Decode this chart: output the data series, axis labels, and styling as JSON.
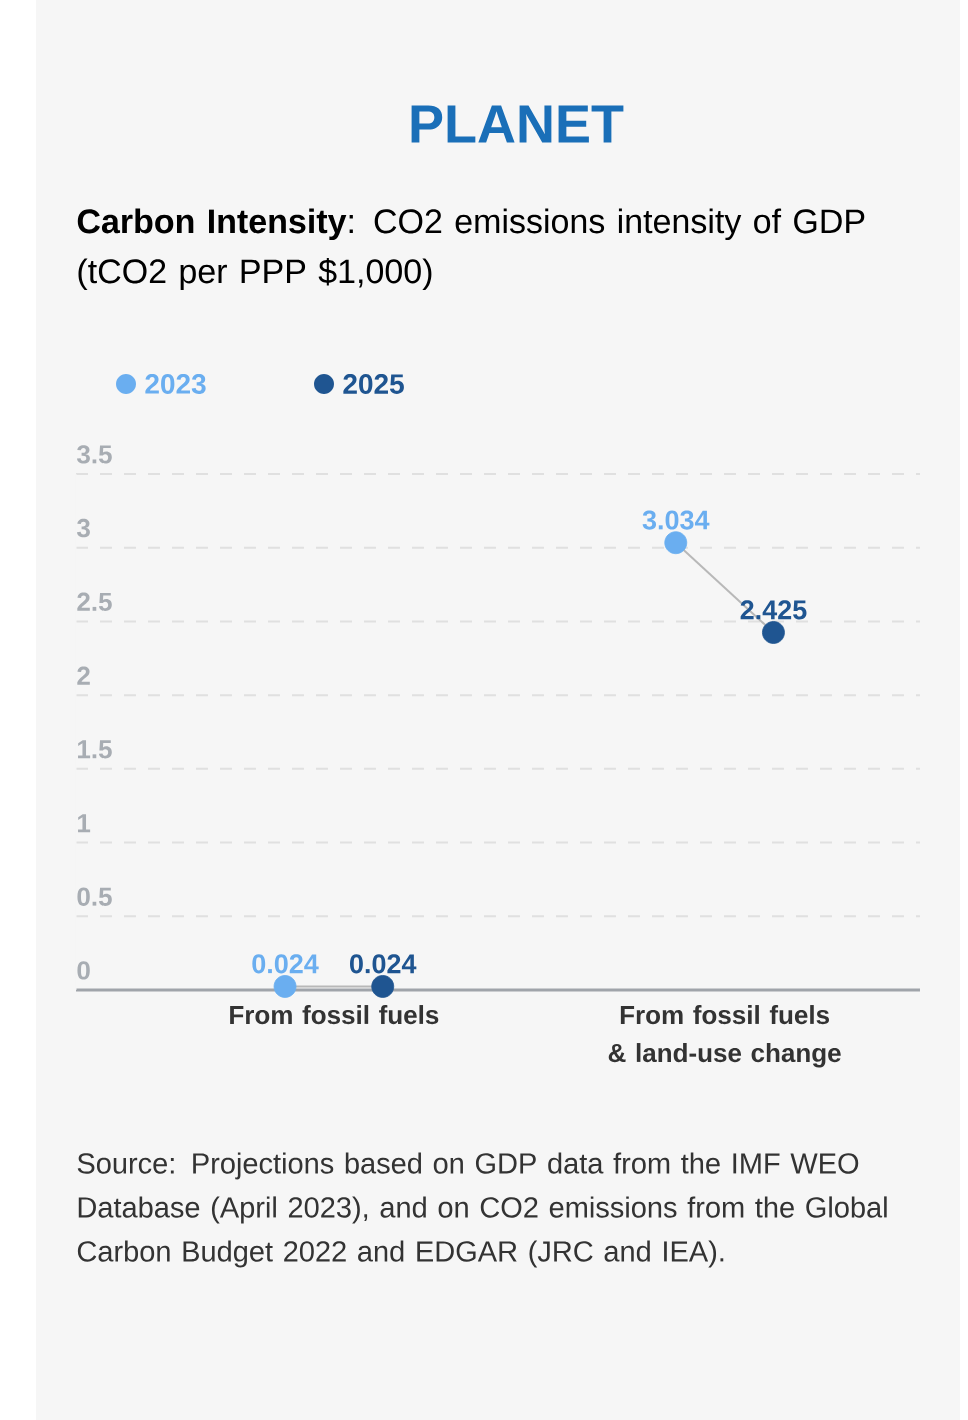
{
  "chart_data": {
    "type": "scatter",
    "title": "PLANET",
    "subtitle": "**Carbon Intensity**: CO2 emissions intensity of GDP (tCO2 per PPP $1,000)",
    "categories": [
      "From fossil fuels",
      "From fossil fuels & land-use change"
    ],
    "series": [
      {
        "name": "2023",
        "color": "#6aaef0",
        "values": [
          0.024,
          3.034
        ]
      },
      {
        "name": "2025",
        "color": "#1f5591",
        "values": [
          0.024,
          2.425
        ]
      }
    ],
    "ylim": [
      0,
      3.5
    ],
    "yticks": [
      0,
      0.5,
      1,
      1.5,
      2,
      2.5,
      3,
      3.5
    ],
    "grid": "y",
    "legend": "top left",
    "marker": "circle",
    "data_labels": true,
    "annotations": [
      "Source: Projections based on GDP data from the IMF WEO Database (April 2023), and on CO2 emissions from the Global Carbon Budget 2022 and EDGAR (JRC and IEA)."
    ]
  }
}
